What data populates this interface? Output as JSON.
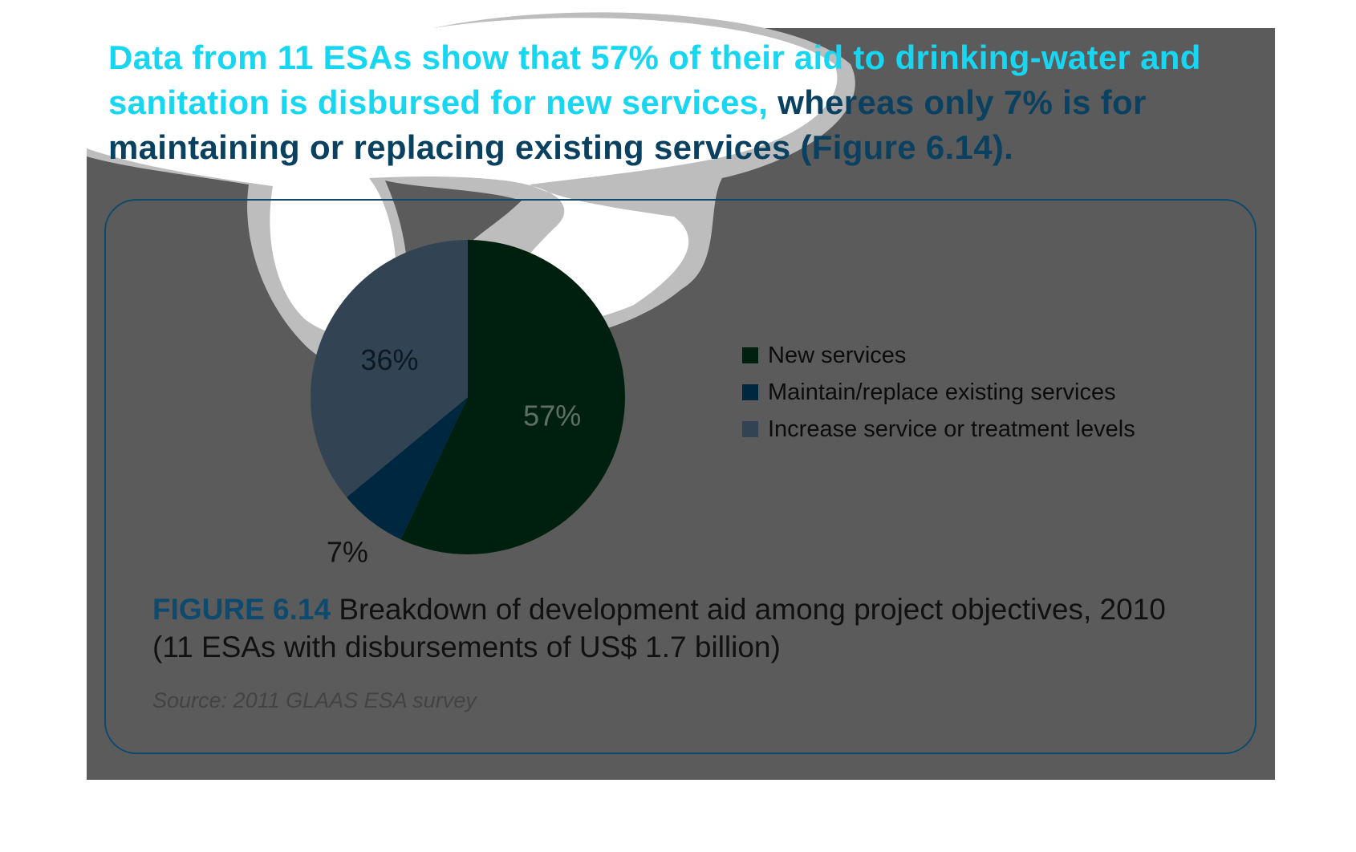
{
  "headline": {
    "highlight": "Data from 11 ESAs show that 57% of their aid to drinking-water and sanitation is disbursed for new services,",
    "rest": " whereas only 7% is for maintaining or replacing existing services (Figure 6.14)."
  },
  "figure": {
    "number": "FIGURE 6.14",
    "caption": " Breakdown of development aid among project objectives, 2010 (11 ESAs with disbursements of US$ 1.7 billion)",
    "source": "Source: 2011 GLAAS ESA survey"
  },
  "colors": {
    "panel": "#5b5b5b",
    "accent_navy": "#0d4a6d",
    "highlight_cyan": "#17d6f2"
  },
  "chart_data": {
    "type": "pie",
    "title": "",
    "slices": [
      {
        "name": "New services",
        "value": 57,
        "label": "57%",
        "color": "#00200f"
      },
      {
        "name": "Maintain/replace existing services",
        "value": 7,
        "label": "7%",
        "color": "#002740"
      },
      {
        "name": "Increase service or treatment levels",
        "value": 36,
        "label": "36%",
        "color": "#324453"
      }
    ],
    "legend": {
      "position": "right",
      "items": [
        "New services",
        "Maintain/replace existing services",
        "Increase service or treatment levels"
      ]
    }
  }
}
